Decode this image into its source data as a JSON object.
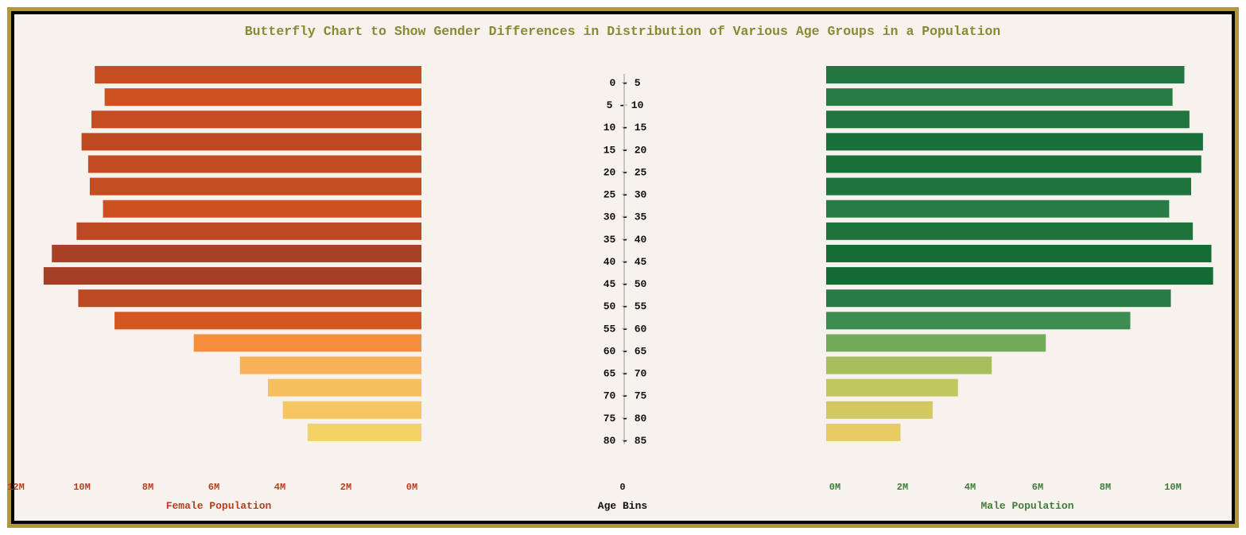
{
  "chart_data": {
    "type": "bar",
    "title": "Butterfly Chart to Show Gender Differences in Distribution of Various Age Groups in a Population",
    "categories": [
      "0 - 5",
      "5 - 10",
      "10 - 15",
      "15 - 20",
      "20 - 25",
      "25 - 30",
      "30 - 35",
      "35 - 40",
      "40 - 45",
      "45 - 50",
      "50 - 55",
      "55 - 60",
      "60 - 65",
      "65 - 70",
      "70 - 75",
      "75 - 80",
      "80 - 85"
    ],
    "series": [
      {
        "name": "Female Population",
        "values": [
          9.9,
          9.6,
          10.0,
          10.3,
          10.1,
          10.05,
          9.65,
          10.45,
          11.2,
          11.45,
          10.4,
          9.3,
          6.9,
          5.5,
          4.65,
          4.2,
          3.45
        ],
        "color_scale": [
          "#f3d266",
          "#f7b35a",
          "#f48130",
          "#d2531f",
          "#a33e27"
        ]
      },
      {
        "name": "Male Population",
        "values": [
          10.6,
          10.25,
          10.75,
          11.15,
          11.1,
          10.8,
          10.15,
          10.85,
          11.4,
          11.45,
          10.2,
          9.0,
          6.5,
          4.9,
          3.9,
          3.15,
          2.2
        ],
        "color_scale": [
          "#e8cc63",
          "#b3c45e",
          "#67a85a",
          "#3a8a50",
          "#146b35"
        ]
      }
    ],
    "female_axis": {
      "label": "Female Population",
      "ticks": [
        "12M",
        "10M",
        "8M",
        "6M",
        "4M",
        "2M",
        "0M"
      ],
      "range": [
        12,
        0
      ]
    },
    "male_axis": {
      "label": "Male Population",
      "ticks": [
        "0M",
        "2M",
        "4M",
        "6M",
        "8M",
        "10M"
      ],
      "range": [
        0,
        11.5
      ]
    },
    "center_axis": {
      "label": "Age Bins",
      "tick": "0"
    },
    "units": "M",
    "colors": {
      "title": "#8a8a33",
      "female_label": "#b5401f",
      "male_label": "#3f7d3a",
      "center_label": "#111111"
    }
  }
}
